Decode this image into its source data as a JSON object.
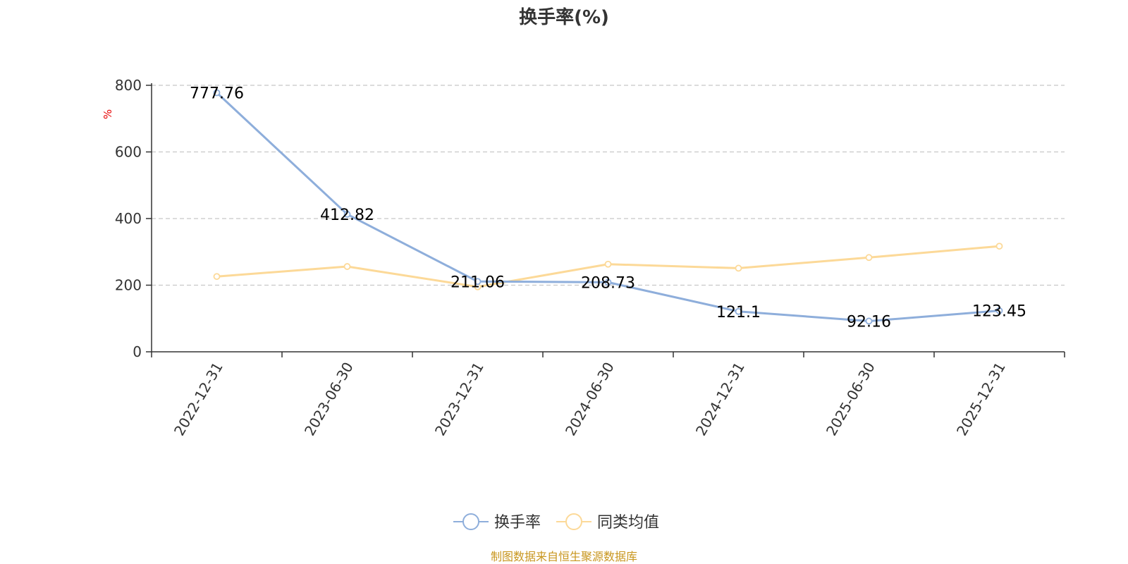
{
  "chart_data": {
    "type": "line",
    "title": "换手率(%)",
    "unit": "%",
    "categories": [
      "2022-12-31",
      "2023-06-30",
      "2023-12-31",
      "2024-06-30",
      "2024-12-31",
      "2025-06-30",
      "2025-12-31"
    ],
    "ylim": [
      0,
      800
    ],
    "yticks": [
      0,
      200,
      400,
      600,
      800
    ],
    "grid": true,
    "legend_position": "bottom-center",
    "series": [
      {
        "name": "换手率",
        "color": "#8eaedb",
        "values": [
          777.76,
          412.82,
          211.06,
          208.73,
          121.1,
          92.16,
          123.45
        ],
        "labels": [
          "777.76",
          "412.82",
          "211.06",
          "208.73",
          "121.1",
          "92.16",
          "123.45"
        ]
      },
      {
        "name": "同类均值",
        "color": "#fcd998",
        "values": [
          226,
          256,
          195,
          263,
          251,
          283,
          317
        ]
      }
    ]
  },
  "source_note": "制图数据来自恒生聚源数据库"
}
